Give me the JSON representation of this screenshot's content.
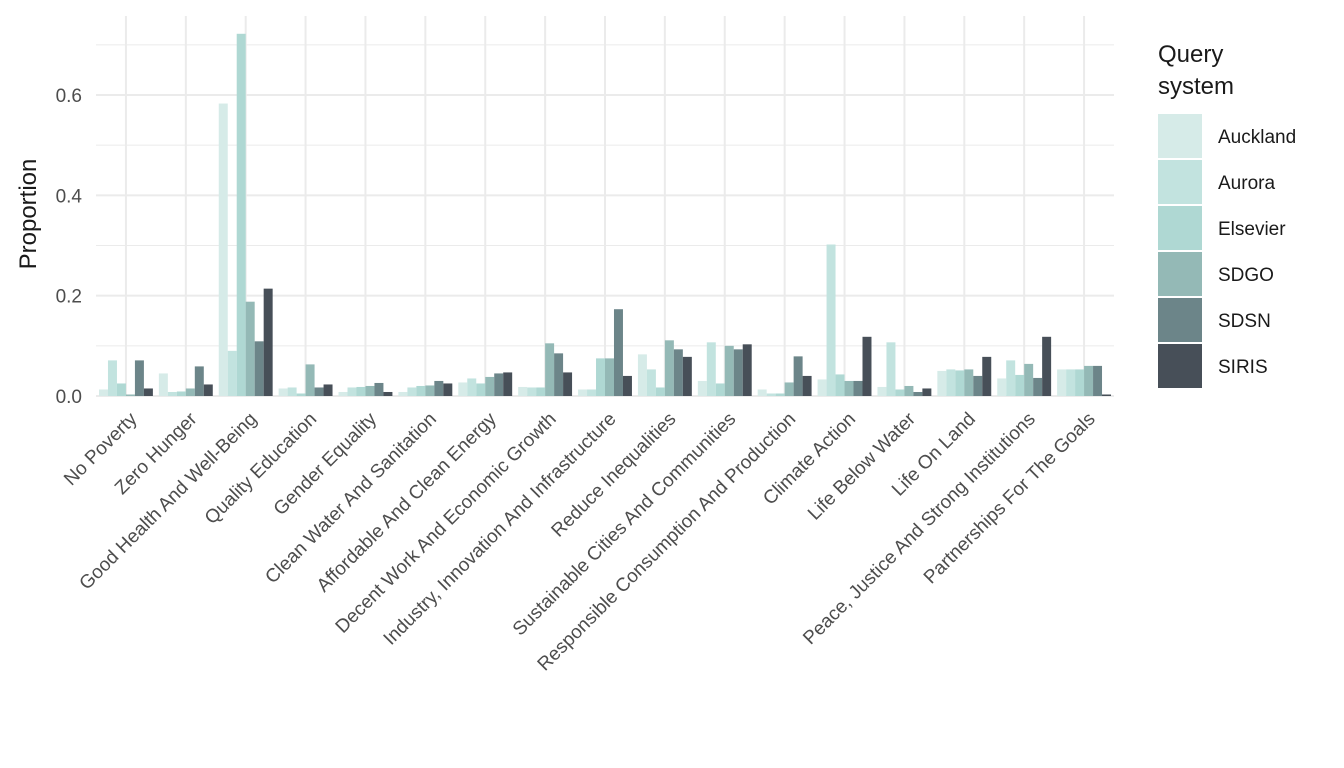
{
  "chart_data": {
    "type": "bar",
    "ylabel": "Proportion",
    "xlabel": "",
    "ylim": [
      0,
      0.75
    ],
    "yticks": [
      0.0,
      0.2,
      0.4,
      0.6
    ],
    "ytick_labels": [
      "0.0",
      "0.2",
      "0.4",
      "0.6"
    ],
    "grid": true,
    "legend": {
      "title_lines": [
        "Query",
        "system"
      ],
      "position": "right"
    },
    "categories": [
      "No Poverty",
      "Zero Hunger",
      "Good Health And Well-Being",
      "Quality Education",
      "Gender Equality",
      "Clean Water And Sanitation",
      "Affordable And Clean Energy",
      "Decent Work And Economic Growth",
      "Industry, Innovation And Infrastructure",
      "Reduce Inequalities",
      "Sustainable Cities And Communities",
      "Responsible Consumption And Production",
      "Climate Action",
      "Life Below Water",
      "Life On Land",
      "Peace, Justice And Strong Institutions",
      "Partnerships For The Goals"
    ],
    "series": [
      {
        "name": "Auckland",
        "color": "#d6ebe8",
        "values": [
          0.013,
          0.045,
          0.583,
          0.015,
          0.008,
          0.008,
          0.027,
          0.018,
          0.013,
          0.083,
          0.03,
          0.013,
          0.033,
          0.018,
          0.05,
          0.035,
          0.053
        ]
      },
      {
        "name": "Aurora",
        "color": "#c2e3df",
        "values": [
          0.071,
          0.008,
          0.09,
          0.017,
          0.017,
          0.017,
          0.035,
          0.017,
          0.013,
          0.053,
          0.107,
          0.005,
          0.302,
          0.107,
          0.053,
          0.071,
          0.053
        ]
      },
      {
        "name": "Elsevier",
        "color": "#afd8d3",
        "values": [
          0.025,
          0.009,
          0.722,
          0.005,
          0.018,
          0.02,
          0.025,
          0.017,
          0.075,
          0.017,
          0.025,
          0.005,
          0.043,
          0.013,
          0.051,
          0.042,
          0.053
        ]
      },
      {
        "name": "SDGO",
        "color": "#94b9b6",
        "values": [
          0.003,
          0.015,
          0.188,
          0.063,
          0.02,
          0.021,
          0.038,
          0.105,
          0.075,
          0.111,
          0.1,
          0.027,
          0.03,
          0.02,
          0.053,
          0.064,
          0.06
        ]
      },
      {
        "name": "SDSN",
        "color": "#6c8589",
        "values": [
          0.071,
          0.059,
          0.109,
          0.017,
          0.026,
          0.03,
          0.045,
          0.085,
          0.173,
          0.093,
          0.093,
          0.079,
          0.03,
          0.008,
          0.04,
          0.036,
          0.06
        ]
      },
      {
        "name": "SIRIS",
        "color": "#474f58",
        "values": [
          0.015,
          0.023,
          0.214,
          0.023,
          0.008,
          0.025,
          0.047,
          0.047,
          0.04,
          0.078,
          0.103,
          0.04,
          0.118,
          0.015,
          0.078,
          0.118,
          0.003
        ]
      }
    ]
  }
}
